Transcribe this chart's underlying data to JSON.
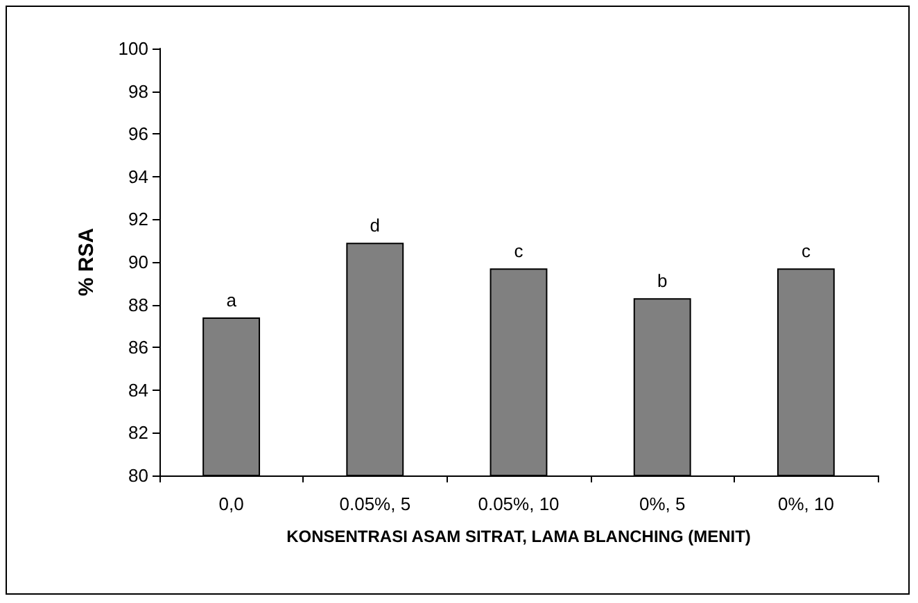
{
  "chart_data": {
    "type": "bar",
    "xlabel": "KONSENTRASI ASAM SITRAT, LAMA BLANCHING (MENIT)",
    "ylabel": "% RSA",
    "categories": [
      "0,0",
      "0.05%, 5",
      "0.05%, 10",
      "0%, 5",
      "0%, 10"
    ],
    "values": [
      87.4,
      90.9,
      89.7,
      88.3,
      89.7
    ],
    "color": "#808080",
    "ylim": [
      80,
      100
    ],
    "yticks": [
      80,
      82,
      84,
      86,
      88,
      90,
      92,
      94,
      96,
      98,
      100
    ],
    "grid": false,
    "annotations": [
      {
        "text": "a",
        "x": "0,0",
        "y": 87.4
      },
      {
        "text": "d",
        "x": "0.05%, 5",
        "y": 90.9
      },
      {
        "text": "c",
        "x": "0.05%, 10",
        "y": 89.7
      },
      {
        "text": "b",
        "x": "0%, 5",
        "y": 88.3
      },
      {
        "text": "c",
        "x": "0%, 10",
        "y": 89.7
      }
    ]
  }
}
